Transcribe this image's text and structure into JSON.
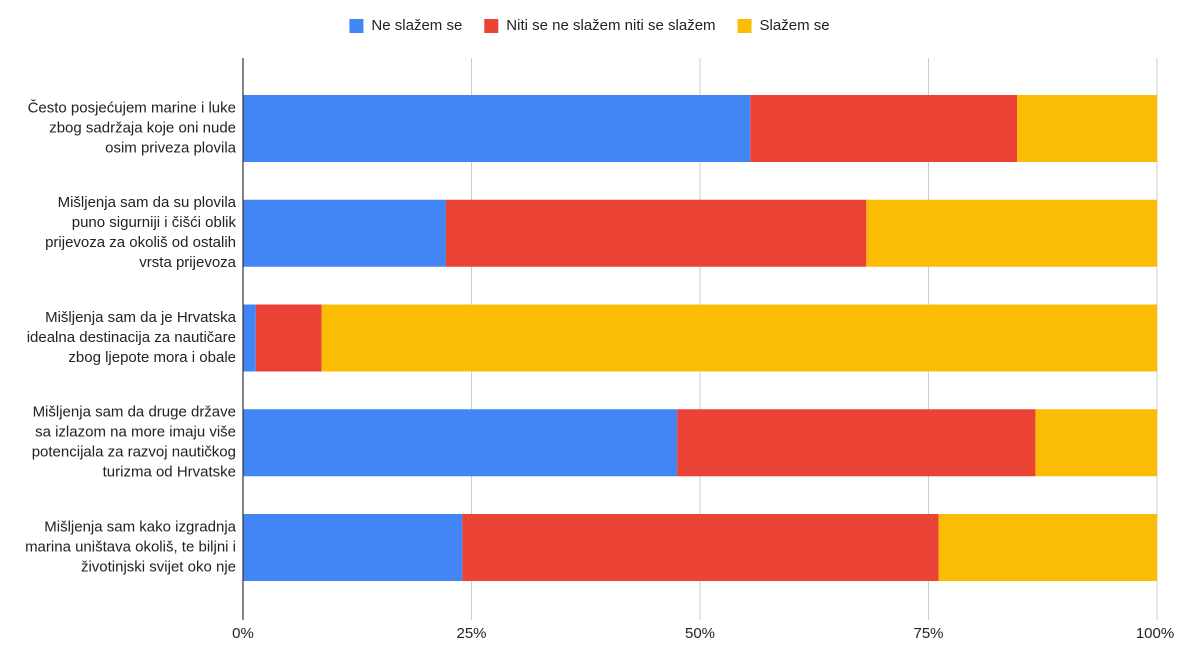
{
  "chart_data": {
    "type": "bar",
    "orientation": "horizontal",
    "stacked": "percent",
    "title": "",
    "xlabel": "",
    "ylabel": "",
    "xlim": [
      0,
      100
    ],
    "x_ticks": [
      "0%",
      "25%",
      "50%",
      "75%",
      "100%"
    ],
    "x_tick_values": [
      0,
      25,
      50,
      75,
      100
    ],
    "grid": "vertical gridlines",
    "legend_position": "top",
    "categories": [
      [
        "Često posjećujem marine i luke",
        "zbog sadržaja koje oni nude",
        "osim priveza plovila"
      ],
      [
        "Mišljenja sam da su plovila",
        "puno sigurniji i čišći oblik",
        "prijevoza za okoliš od ostalih",
        "vrsta prijevoza"
      ],
      [
        "Mišljenja sam da je Hrvatska",
        "idealna destinacija za nautičare",
        "zbog ljepote mora i obale"
      ],
      [
        "Mišljenja sam da druge države",
        "sa izlazom na more imaju više",
        "potencijala za razvoj nautičkog",
        "turizma od Hrvatske"
      ],
      [
        "Mišljenja sam kako izgradnja",
        "marina uništava okoliš, te biljni i",
        "životinjski svijet oko nje"
      ]
    ],
    "series": [
      {
        "name": "Ne slažem se",
        "color": "#4285f4",
        "values": [
          55.5,
          22.2,
          1.4,
          47.5,
          24.0
        ]
      },
      {
        "name": "Niti se ne slažem niti se slažem",
        "color": "#ea4335",
        "values": [
          29.2,
          46.0,
          7.2,
          39.2,
          52.1
        ]
      },
      {
        "name": "Slažem se",
        "color": "#fbbc04",
        "values": [
          15.3,
          31.8,
          91.4,
          13.3,
          23.9
        ]
      }
    ],
    "colors": {
      "grid": "#cccccc",
      "axis": "#333333",
      "text": "#222222"
    }
  }
}
